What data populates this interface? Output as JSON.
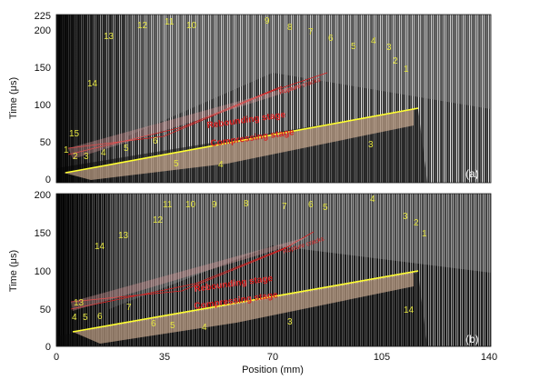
{
  "figure": {
    "xlabel": "Position (mm)",
    "ylabel": "Time (μs)",
    "xticks": [
      "0",
      "35",
      "70",
      "105",
      "140"
    ],
    "panels": [
      {
        "label": "(a)",
        "yticks": [
          "225",
          "200",
          "150",
          "100",
          "50",
          "0"
        ],
        "stages": {
          "compressing": "Compressing stage",
          "rebounding": "Rebounding stage",
          "cracks": "Rupture cracks"
        },
        "numbers": [
          "1",
          "2",
          "3",
          "4",
          "5",
          "6",
          "15",
          "14",
          "13",
          "12",
          "11",
          "10",
          "9",
          "8",
          "7",
          "6",
          "5",
          "4",
          "3",
          "2",
          "1",
          "5",
          "4",
          "3"
        ]
      },
      {
        "label": "(b)",
        "yticks": [
          "200",
          "150",
          "100",
          "50",
          "0"
        ],
        "stages": {
          "compressing": "Compressing stage",
          "rebounding": "Rebounding stage",
          "cracks": "Rupture cracks"
        },
        "numbers": [
          "4",
          "5",
          "6",
          "13",
          "14",
          "12",
          "13",
          "11",
          "10",
          "9",
          "8",
          "7",
          "6",
          "5",
          "4",
          "3",
          "2",
          "1",
          "7",
          "6",
          "5",
          "4",
          "3",
          "14"
        ]
      }
    ]
  }
}
